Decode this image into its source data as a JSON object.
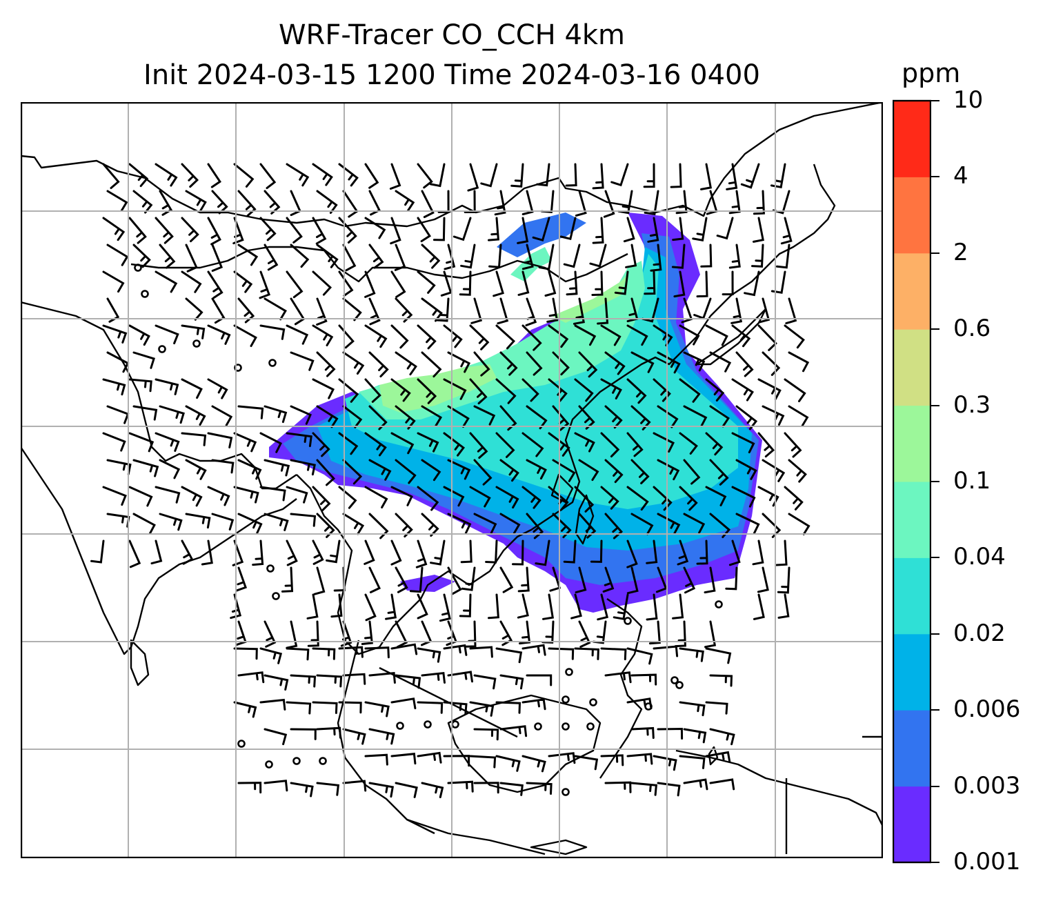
{
  "title": {
    "line1": "WRF-Tracer CO_CCH 4km",
    "line2": "Init 2024-03-15 1200 Time 2024-03-16 0400"
  },
  "colorbar": {
    "unit": "ppm",
    "levels": [
      "0.001",
      "0.003",
      "0.006",
      "0.02",
      "0.04",
      "0.1",
      "0.3",
      "0.6",
      "2",
      "4",
      "10"
    ],
    "colors": [
      "#6a2cff",
      "#3274f0",
      "#00b2e8",
      "#2fe0d6",
      "#6cf6c0",
      "#9cf79a",
      "#d0e084",
      "#fdb066",
      "#ff7440",
      "#ff2a18"
    ]
  }
}
